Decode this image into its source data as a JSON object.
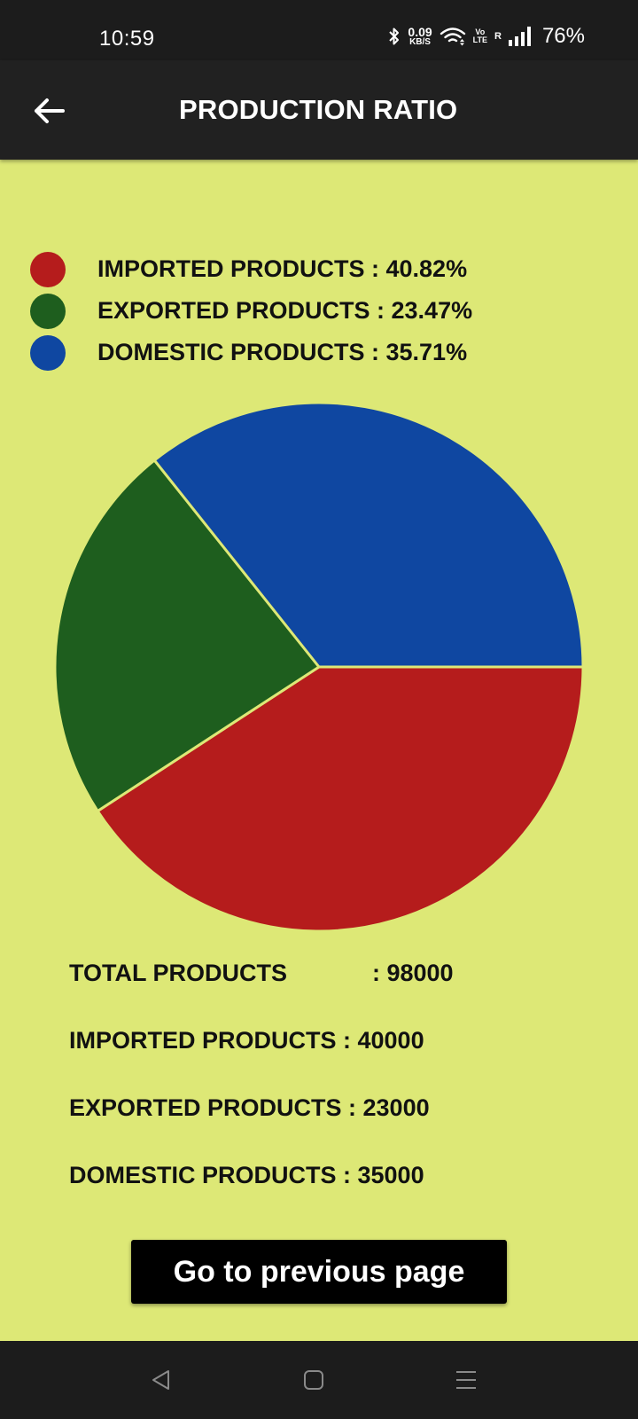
{
  "status_bar": {
    "time": "10:59",
    "net_speed_value": "0.09",
    "net_speed_unit": "KB/S",
    "volte_top": "Vo",
    "volte_bottom": "LTE",
    "roaming": "R",
    "battery": "76%"
  },
  "app_bar": {
    "title": "PRODUCTION RATIO",
    "back_icon": "arrow-left-icon"
  },
  "legend": [
    {
      "label": "IMPORTED PRODUCTS : 40.82%",
      "color": "#b51c1c"
    },
    {
      "label": "EXPORTED PRODUCTS : 23.47%",
      "color": "#1e5e1e"
    },
    {
      "label": "DOMESTIC PRODUCTS : 35.71%",
      "color": "#0f47a1"
    }
  ],
  "chart_data": {
    "type": "pie",
    "categories": [
      "IMPORTED PRODUCTS",
      "EXPORTED PRODUCTS",
      "DOMESTIC PRODUCTS"
    ],
    "values": [
      40.82,
      23.47,
      35.71
    ],
    "colors": [
      "#b51c1c",
      "#1e5e1e",
      "#0f47a1"
    ],
    "legend_position": "top-left"
  },
  "totals": {
    "total_label": "TOTAL PRODUCTS",
    "total_value": ": 98000",
    "imported": "IMPORTED PRODUCTS : 40000",
    "exported": "EXPORTED PRODUCTS : 23000",
    "domestic": "DOMESTIC PRODUCTS : 35000"
  },
  "button": {
    "label": "Go to previous page"
  },
  "nav_bar": {
    "back_icon": "triangle-back-icon",
    "home_icon": "square-home-icon",
    "menu_icon": "hamburger-menu-icon"
  }
}
